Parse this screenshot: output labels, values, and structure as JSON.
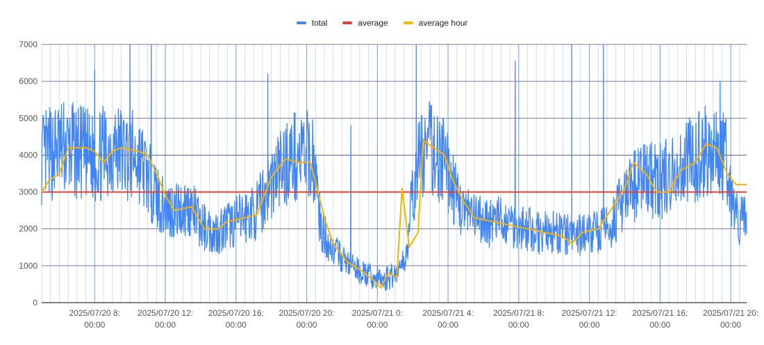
{
  "chart_data": {
    "type": "line",
    "title": "",
    "xlabel": "",
    "ylabel": "",
    "ylim": [
      0,
      7000
    ],
    "yticks": [
      0,
      1000,
      2000,
      3000,
      4000,
      5000,
      6000,
      7000
    ],
    "ytick_labels": [
      "0",
      "1000",
      "2000",
      "3000",
      "4000",
      "5000",
      "6000",
      "7000"
    ],
    "x_range_hours": [
      5.0,
      44.9
    ],
    "x_tick_hours": [
      8,
      12,
      16,
      20,
      24,
      28,
      32,
      36,
      40,
      44
    ],
    "x_tick_labels": [
      [
        "2025/07/20 8:",
        "00:00"
      ],
      [
        "2025/07/20 12:",
        "00:00"
      ],
      [
        "2025/07/20 16:",
        "00:00"
      ],
      [
        "2025/07/20 20:",
        "00:00"
      ],
      [
        "2025/07/21 0:",
        "00:00"
      ],
      [
        "2025/07/21 4:",
        "00:00"
      ],
      [
        "2025/07/21 8:",
        "00:00"
      ],
      [
        "2025/07/21 12:",
        "00:00"
      ],
      [
        "2025/07/21 16:",
        "00:00"
      ],
      [
        "2025/07/21 20:",
        "00:00"
      ]
    ],
    "grid": true,
    "legend_position": "top",
    "series": [
      {
        "name": "total",
        "color": "#4285f4",
        "style": "noisy-line",
        "points": [
          [
            5.0,
            3900
          ],
          [
            6.0,
            4200
          ],
          [
            7.0,
            4100
          ],
          [
            8.0,
            3900
          ],
          [
            9.0,
            4200
          ],
          [
            10.0,
            4000
          ],
          [
            10.5,
            3900
          ],
          [
            11.2,
            3200
          ],
          [
            11.8,
            2600
          ],
          [
            12.6,
            2500
          ],
          [
            13.4,
            2600
          ],
          [
            14.0,
            2100
          ],
          [
            14.8,
            1900
          ],
          [
            15.6,
            2100
          ],
          [
            16.4,
            2300
          ],
          [
            17.2,
            2500
          ],
          [
            17.7,
            3000
          ],
          [
            18.3,
            3500
          ],
          [
            19.0,
            3900
          ],
          [
            19.8,
            4000
          ],
          [
            20.4,
            3900
          ],
          [
            20.8,
            2000
          ],
          [
            21.4,
            1500
          ],
          [
            22.0,
            1200
          ],
          [
            22.8,
            900
          ],
          [
            23.6,
            700
          ],
          [
            24.4,
            600
          ],
          [
            25.0,
            800
          ],
          [
            25.6,
            1200
          ],
          [
            25.9,
            2500
          ],
          [
            26.4,
            4000
          ],
          [
            27.0,
            4200
          ],
          [
            27.8,
            3800
          ],
          [
            28.5,
            2800
          ],
          [
            29.2,
            2300
          ],
          [
            30.0,
            2200
          ],
          [
            31.0,
            2200
          ],
          [
            32.0,
            2100
          ],
          [
            33.0,
            1900
          ],
          [
            34.0,
            1900
          ],
          [
            35.0,
            1800
          ],
          [
            36.0,
            1900
          ],
          [
            37.0,
            2000
          ],
          [
            38.0,
            2800
          ],
          [
            39.0,
            3400
          ],
          [
            40.0,
            3300
          ],
          [
            41.0,
            3600
          ],
          [
            42.0,
            4000
          ],
          [
            43.0,
            4300
          ],
          [
            43.8,
            3800
          ],
          [
            44.2,
            2300
          ],
          [
            44.9,
            2200
          ]
        ],
        "spikes": [
          [
            10.0,
            7000
          ],
          [
            11.2,
            7000
          ],
          [
            17.8,
            6200
          ],
          [
            22.5,
            4800
          ],
          [
            26.2,
            7000
          ],
          [
            35.0,
            7000
          ],
          [
            36.8,
            7000
          ],
          [
            43.4,
            6000
          ],
          [
            8.0,
            6300
          ],
          [
            31.8,
            6550
          ]
        ]
      },
      {
        "name": "average",
        "color": "#db4437",
        "style": "flat",
        "points": [
          [
            5.0,
            3000
          ],
          [
            44.9,
            3000
          ]
        ]
      },
      {
        "name": "average hour",
        "color": "#f4b400",
        "style": "smooth",
        "points": [
          [
            5.0,
            3000
          ],
          [
            5.4,
            3300
          ],
          [
            6.0,
            3500
          ],
          [
            6.5,
            4200
          ],
          [
            7.5,
            4200
          ],
          [
            8.0,
            4100
          ],
          [
            8.5,
            3800
          ],
          [
            9.0,
            4100
          ],
          [
            9.5,
            4200
          ],
          [
            10.5,
            4100
          ],
          [
            11.0,
            4000
          ],
          [
            11.5,
            3500
          ],
          [
            12.0,
            2900
          ],
          [
            12.5,
            2500
          ],
          [
            13.5,
            2600
          ],
          [
            14.2,
            2000
          ],
          [
            15.0,
            2000
          ],
          [
            15.5,
            2200
          ],
          [
            16.5,
            2300
          ],
          [
            17.2,
            2400
          ],
          [
            18.0,
            3400
          ],
          [
            18.8,
            3900
          ],
          [
            19.5,
            3800
          ],
          [
            20.2,
            3800
          ],
          [
            20.6,
            3100
          ],
          [
            21.0,
            2300
          ],
          [
            21.5,
            1600
          ],
          [
            22.3,
            1100
          ],
          [
            23.0,
            900
          ],
          [
            23.8,
            600
          ],
          [
            24.2,
            400
          ],
          [
            24.6,
            800
          ],
          [
            25.1,
            700
          ],
          [
            25.4,
            3100
          ],
          [
            25.8,
            1500
          ],
          [
            26.3,
            1900
          ],
          [
            26.6,
            4400
          ],
          [
            27.2,
            4200
          ],
          [
            27.8,
            4000
          ],
          [
            28.2,
            3400
          ],
          [
            28.8,
            2800
          ],
          [
            29.5,
            2300
          ],
          [
            30.5,
            2200
          ],
          [
            31.5,
            2100
          ],
          [
            32.5,
            2000
          ],
          [
            33.5,
            1900
          ],
          [
            34.5,
            1800
          ],
          [
            35.0,
            1600
          ],
          [
            35.6,
            1900
          ],
          [
            36.5,
            2000
          ],
          [
            37.2,
            2500
          ],
          [
            38.0,
            3100
          ],
          [
            38.5,
            3800
          ],
          [
            39.2,
            3500
          ],
          [
            39.8,
            3000
          ],
          [
            40.5,
            3000
          ],
          [
            41.2,
            3600
          ],
          [
            42.0,
            3800
          ],
          [
            42.6,
            4300
          ],
          [
            43.2,
            4200
          ],
          [
            43.8,
            3500
          ],
          [
            44.3,
            3200
          ],
          [
            44.9,
            3200
          ]
        ]
      }
    ]
  }
}
